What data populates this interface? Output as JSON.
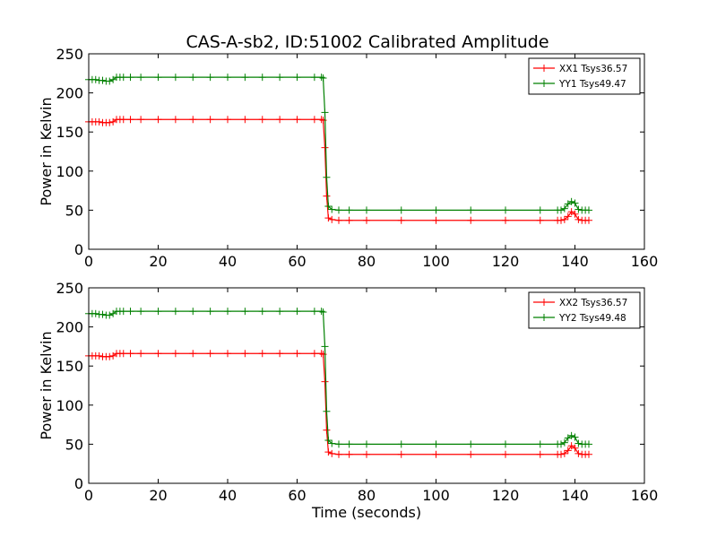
{
  "figure": {
    "title": "CAS-A-sb2, ID:51002 Calibrated Amplitude"
  },
  "chart_data": [
    {
      "type": "line",
      "title": "CAS-A-sb2, ID:51002 Calibrated Amplitude",
      "xlabel": "",
      "ylabel": "Power in Kelvin",
      "xlim": [
        0,
        160
      ],
      "ylim": [
        0,
        250
      ],
      "xticks": [
        0,
        20,
        40,
        60,
        80,
        100,
        120,
        140,
        160
      ],
      "yticks": [
        0,
        50,
        100,
        150,
        200,
        250
      ],
      "grid": false,
      "legend_position": "top-right",
      "markers": "plus",
      "series": [
        {
          "name": "XX1 Tsys36.57",
          "color": "#ff0000",
          "x": [
            0,
            1,
            2,
            3,
            4,
            5,
            6,
            7,
            8,
            9,
            10,
            12,
            15,
            20,
            25,
            30,
            35,
            40,
            45,
            50,
            55,
            60,
            65,
            67,
            67.5,
            68,
            68.5,
            69,
            70,
            72,
            75,
            80,
            90,
            100,
            110,
            120,
            130,
            135,
            136,
            137,
            138,
            139,
            140,
            141,
            142,
            143,
            144
          ],
          "values": [
            163,
            163,
            163,
            163,
            162,
            162,
            162,
            163,
            166,
            166,
            166,
            166,
            166,
            166,
            166,
            166,
            166,
            166,
            166,
            166,
            166,
            166,
            166,
            166,
            165,
            130,
            68,
            40,
            38,
            37,
            37,
            37,
            37,
            37,
            37,
            37,
            37,
            37,
            37,
            38,
            42,
            48,
            45,
            38,
            37,
            37,
            37
          ]
        },
        {
          "name": "YY1 Tsys49.47",
          "color": "#008000",
          "x": [
            0,
            1,
            2,
            3,
            4,
            5,
            6,
            7,
            8,
            9,
            10,
            12,
            15,
            20,
            25,
            30,
            35,
            40,
            45,
            50,
            55,
            60,
            65,
            67,
            67.5,
            68,
            68.5,
            69,
            70,
            72,
            75,
            80,
            90,
            100,
            110,
            120,
            130,
            135,
            136,
            137,
            138,
            139,
            140,
            141,
            142,
            143,
            144
          ],
          "values": [
            217,
            217,
            217,
            216,
            216,
            215,
            215,
            217,
            220,
            220,
            220,
            220,
            220,
            220,
            220,
            220,
            220,
            220,
            220,
            220,
            220,
            220,
            220,
            220,
            219,
            175,
            92,
            55,
            51,
            50,
            50,
            50,
            50,
            50,
            50,
            50,
            50,
            50,
            50,
            52,
            58,
            61,
            59,
            51,
            50,
            50,
            50
          ]
        }
      ]
    },
    {
      "type": "line",
      "title": "",
      "xlabel": "Time (seconds)",
      "ylabel": "Power in Kelvin",
      "xlim": [
        0,
        160
      ],
      "ylim": [
        0,
        250
      ],
      "xticks": [
        0,
        20,
        40,
        60,
        80,
        100,
        120,
        140,
        160
      ],
      "yticks": [
        0,
        50,
        100,
        150,
        200,
        250
      ],
      "grid": false,
      "legend_position": "top-right",
      "markers": "plus",
      "series": [
        {
          "name": "XX2 Tsys36.57",
          "color": "#ff0000",
          "x": [
            0,
            1,
            2,
            3,
            4,
            5,
            6,
            7,
            8,
            9,
            10,
            12,
            15,
            20,
            25,
            30,
            35,
            40,
            45,
            50,
            55,
            60,
            65,
            67,
            67.5,
            68,
            68.5,
            69,
            70,
            72,
            75,
            80,
            90,
            100,
            110,
            120,
            130,
            135,
            136,
            137,
            138,
            139,
            140,
            141,
            142,
            143,
            144
          ],
          "values": [
            163,
            163,
            163,
            163,
            162,
            162,
            162,
            163,
            166,
            166,
            166,
            166,
            166,
            166,
            166,
            166,
            166,
            166,
            166,
            166,
            166,
            166,
            166,
            166,
            165,
            130,
            68,
            40,
            38,
            37,
            37,
            37,
            37,
            37,
            37,
            37,
            37,
            37,
            37,
            38,
            42,
            48,
            45,
            38,
            37,
            37,
            37
          ]
        },
        {
          "name": "YY2 Tsys49.48",
          "color": "#008000",
          "x": [
            0,
            1,
            2,
            3,
            4,
            5,
            6,
            7,
            8,
            9,
            10,
            12,
            15,
            20,
            25,
            30,
            35,
            40,
            45,
            50,
            55,
            60,
            65,
            67,
            67.5,
            68,
            68.5,
            69,
            70,
            72,
            75,
            80,
            90,
            100,
            110,
            120,
            130,
            135,
            136,
            137,
            138,
            139,
            140,
            141,
            142,
            143,
            144
          ],
          "values": [
            217,
            217,
            217,
            216,
            216,
            215,
            215,
            217,
            220,
            220,
            220,
            220,
            220,
            220,
            220,
            220,
            220,
            220,
            220,
            220,
            220,
            220,
            220,
            220,
            219,
            175,
            92,
            55,
            51,
            50,
            50,
            50,
            50,
            50,
            50,
            50,
            50,
            50,
            50,
            52,
            58,
            61,
            59,
            51,
            50,
            50,
            50
          ]
        }
      ]
    }
  ]
}
